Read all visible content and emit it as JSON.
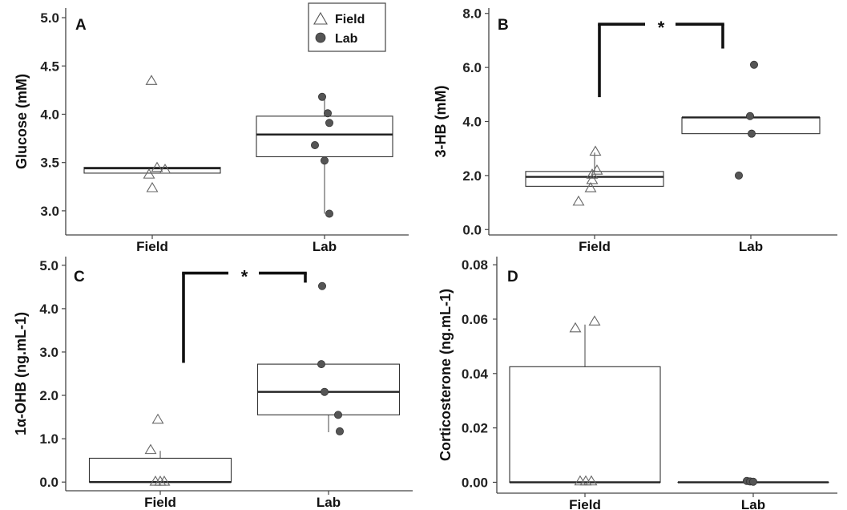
{
  "chart_data": [
    {
      "type": "box",
      "panel": "A",
      "ylabel": "Glucose (mM)",
      "ylim": [
        2.75,
        5.1
      ],
      "yticks": [
        "3.0",
        "3.5",
        "4.0",
        "4.5",
        "5.0"
      ],
      "ytick_values": [
        3.0,
        3.5,
        4.0,
        4.5,
        5.0
      ],
      "categories": [
        "Field",
        "Lab"
      ],
      "legend": {
        "placement": "top-right",
        "entries": [
          "Field",
          "Lab"
        ]
      },
      "boxes": [
        {
          "q1": 3.39,
          "median": 3.44,
          "q3": 3.45,
          "whisker_low": 3.39,
          "whisker_high": 3.45
        },
        {
          "q1": 3.56,
          "median": 3.79,
          "q3": 3.98,
          "whisker_low": 2.97,
          "whisker_high": 4.18
        }
      ],
      "points": [
        [
          4.35,
          3.45,
          3.43,
          3.38,
          3.24
        ],
        [
          4.18,
          4.01,
          3.91,
          3.68,
          3.52,
          2.97
        ]
      ]
    },
    {
      "type": "box",
      "panel": "B",
      "ylabel": "3-HB (mM)",
      "ylim": [
        -0.2,
        8.2
      ],
      "yticks": [
        "0.0",
        "2.0",
        "4.0",
        "6.0",
        "8.0"
      ],
      "ytick_values": [
        0,
        2,
        4,
        6,
        8
      ],
      "categories": [
        "Field",
        "Lab"
      ],
      "significance": {
        "label": "*",
        "height": 7.6,
        "left_drop": 4.9,
        "right_drop": 6.7
      },
      "boxes": [
        {
          "q1": 1.6,
          "median": 1.95,
          "q3": 2.15,
          "whisker_low": 1.6,
          "whisker_high": 2.85
        },
        {
          "q1": 3.55,
          "median": 4.15,
          "q3": 4.15,
          "whisker_low": 3.55,
          "whisker_high": 4.15
        }
      ],
      "points": [
        [
          2.9,
          2.2,
          2.05,
          1.85,
          1.55,
          1.05
        ],
        [
          6.1,
          4.2,
          3.55,
          2.0
        ]
      ]
    },
    {
      "type": "box",
      "panel": "C",
      "ylabel": "1α-OHB (ng.mL-1)",
      "ylim": [
        -0.2,
        5.2
      ],
      "yticks": [
        "0.0",
        "1.0",
        "2.0",
        "3.0",
        "4.0",
        "5.0"
      ],
      "ytick_values": [
        0,
        1,
        2,
        3,
        4,
        5
      ],
      "categories": [
        "Field",
        "Lab"
      ],
      "significance": {
        "label": "*",
        "height": 4.82,
        "left_drop": 2.75,
        "right_drop": 4.6
      },
      "boxes": [
        {
          "q1": 0.0,
          "median": 0.0,
          "q3": 0.55,
          "whisker_low": 0.0,
          "whisker_high": 0.72
        },
        {
          "q1": 1.55,
          "median": 2.08,
          "q3": 2.72,
          "whisker_low": 1.15,
          "whisker_high": 2.72
        }
      ],
      "points": [
        [
          1.45,
          0.75,
          0.02,
          0.02,
          0.02
        ],
        [
          4.52,
          2.72,
          2.08,
          1.55,
          1.17
        ]
      ]
    },
    {
      "type": "box",
      "panel": "D",
      "ylabel": "Corticosterone  (ng.mL-1)",
      "ylim": [
        -0.004,
        0.083
      ],
      "yticks": [
        "0.00",
        "0.02",
        "0.04",
        "0.06",
        "0.08"
      ],
      "ytick_values": [
        0,
        0.02,
        0.04,
        0.06,
        0.08
      ],
      "categories": [
        "Field",
        "Lab"
      ],
      "boxes": [
        {
          "q1": 0.0,
          "median": 0.0,
          "q3": 0.0425,
          "whisker_low": 0.0,
          "whisker_high": 0.058
        },
        {
          "q1": 0.0,
          "median": 0.0,
          "q3": 0.0,
          "whisker_low": 0.0,
          "whisker_high": 0.0
        }
      ],
      "points": [
        [
          0.0593,
          0.0568,
          0.0005,
          0.0005,
          0.0005
        ],
        [
          0.0005,
          0.0003,
          0.0002
        ]
      ]
    }
  ]
}
